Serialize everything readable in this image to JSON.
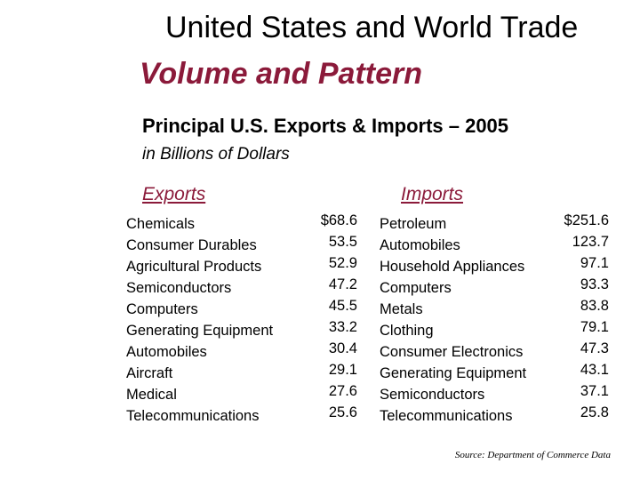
{
  "title": "United States and World Trade",
  "subtitle": "Volume and Pattern",
  "heading": "Principal U.S. Exports & Imports – 2005",
  "units": "in Billions of Dollars",
  "exports": {
    "header": "Exports",
    "rows": [
      {
        "name": "Chemicals",
        "value": "$68.6"
      },
      {
        "name": "Consumer Durables",
        "value": "53.5"
      },
      {
        "name": "Agricultural Products",
        "value": "52.9"
      },
      {
        "name": "Semiconductors",
        "value": "47.2"
      },
      {
        "name": "Computers",
        "value": "45.5"
      },
      {
        "name": "Generating Equipment",
        "value": "33.2"
      },
      {
        "name": "Automobiles",
        "value": "30.4"
      },
      {
        "name": "Aircraft",
        "value": "29.1"
      },
      {
        "name": "Medical",
        "value": "27.6"
      },
      {
        "name": "Telecommunications",
        "value": "25.6"
      }
    ]
  },
  "imports": {
    "header": "Imports",
    "rows": [
      {
        "name": "Petroleum",
        "value": "$251.6"
      },
      {
        "name": "Automobiles",
        "value": "123.7"
      },
      {
        "name": "Household Appliances",
        "value": "97.1"
      },
      {
        "name": "Computers",
        "value": "93.3"
      },
      {
        "name": "Metals",
        "value": "83.8"
      },
      {
        "name": "Clothing",
        "value": "79.1"
      },
      {
        "name": "Consumer Electronics",
        "value": "47.3"
      },
      {
        "name": "Generating Equipment",
        "value": "43.1"
      },
      {
        "name": "Semiconductors",
        "value": "37.1"
      },
      {
        "name": "Telecommunications",
        "value": "25.8"
      }
    ]
  },
  "source": "Source: Department of Commerce Data",
  "colors": {
    "accent": "#8b1a3a",
    "text": "#000000",
    "background": "#ffffff"
  }
}
